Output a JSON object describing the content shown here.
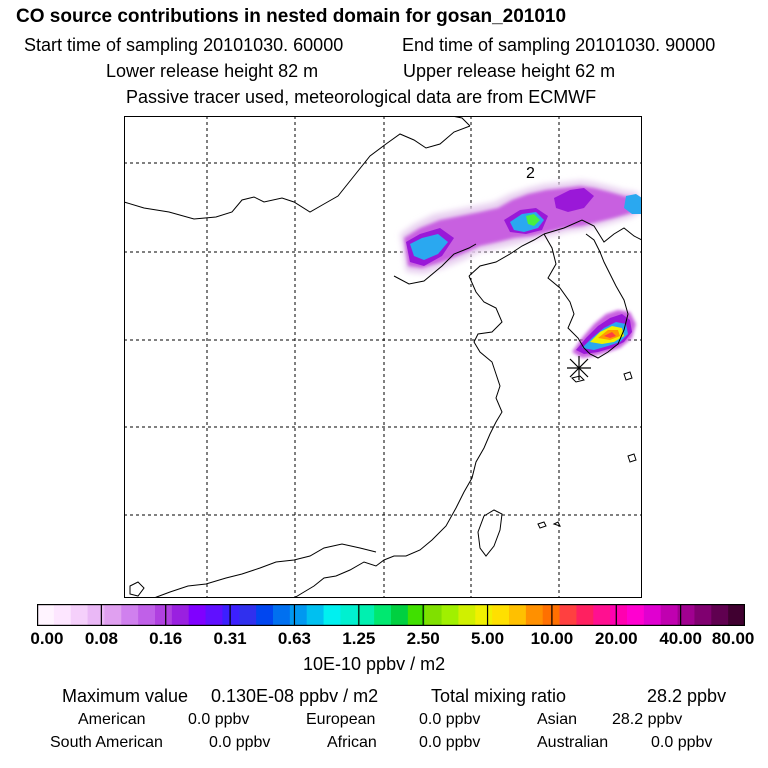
{
  "header": {
    "title": "CO  source contributions in nested domain for gosan_201010",
    "start_time": "Start time of sampling 20101030. 60000",
    "end_time": "End time of sampling 20101030. 90000",
    "lower_height": "Lower release height   82 m",
    "upper_height": "Upper release height   62 m",
    "note": "Passive tracer used, meteorological data are from ECMWF"
  },
  "map": {
    "contour_label": "2",
    "plume_colors": [
      "#e8d0f0",
      "#c860e0",
      "#9a18d8",
      "#2aa8f0",
      "#10f0e0",
      "#48f040",
      "#f0f000",
      "#ff9a00",
      "#ff4040"
    ],
    "marker": "star-marker"
  },
  "colorbar": {
    "colors": [
      "#fff4ff",
      "#fde6ff",
      "#f5d0fb",
      "#eab8f6",
      "#e0a0f0",
      "#d080ee",
      "#c060e8",
      "#b040e0",
      "#9a20e0",
      "#8000ff",
      "#6010ff",
      "#3c20ff",
      "#3030ee",
      "#0046f0",
      "#0070f0",
      "#0098f0",
      "#00c0f0",
      "#00f0f0",
      "#00f0d0",
      "#00f0b0",
      "#00e870",
      "#00d040",
      "#40e000",
      "#80e000",
      "#a0f000",
      "#d0f000",
      "#f0f000",
      "#ffe000",
      "#ffc000",
      "#ff9000",
      "#ff7000",
      "#ff4040",
      "#ff2060",
      "#ff1090",
      "#ff00b0",
      "#ff00d0",
      "#e000d0",
      "#c000b0",
      "#a00090",
      "#800070",
      "#600050",
      "#400030"
    ],
    "ticks": [
      "0.00",
      "0.08",
      "0.16",
      "0.31",
      "0.63",
      "1.25",
      "2.50",
      "5.00",
      "10.00",
      "20.00",
      "40.00",
      "80.00"
    ],
    "units": "10E-10 ppbv / m2"
  },
  "summary": {
    "max_label": "Maximum value",
    "max_value": "0.130E-08 ppbv / m2",
    "total_label": "Total mixing ratio",
    "total_value": "28.2 ppbv",
    "regions": [
      {
        "label": "American",
        "value": "0.0 ppbv"
      },
      {
        "label": "European",
        "value": "0.0 ppbv"
      },
      {
        "label": "Asian",
        "value": "28.2 ppbv"
      },
      {
        "label": "South American",
        "value": "0.0 ppbv"
      },
      {
        "label": "African",
        "value": "0.0 ppbv"
      },
      {
        "label": "Australian",
        "value": "0.0 ppbv"
      }
    ]
  }
}
